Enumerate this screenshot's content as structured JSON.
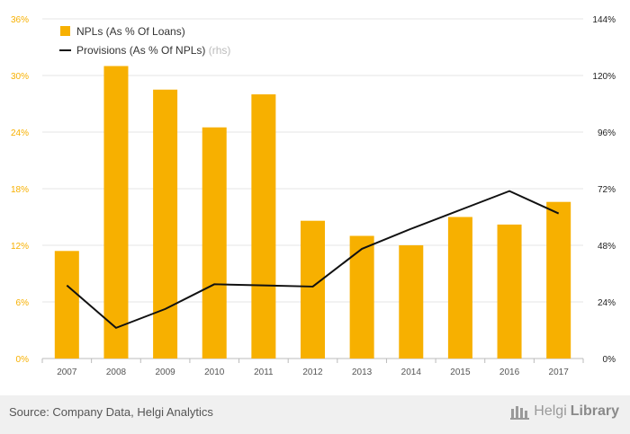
{
  "chart_data": {
    "type": "bar",
    "categories": [
      "2007",
      "2008",
      "2009",
      "2010",
      "2011",
      "2012",
      "2013",
      "2014",
      "2015",
      "2016",
      "2017"
    ],
    "series": [
      {
        "name": "NPLs (As % Of Loans)",
        "type": "bar",
        "axis": "left",
        "color": "#f7b000",
        "values": [
          11.4,
          31.0,
          28.5,
          24.5,
          28.0,
          14.6,
          13.0,
          12.0,
          15.0,
          14.2,
          16.6
        ]
      },
      {
        "name": "Provisions (As % Of NPLs)",
        "name_suffix": "(rhs)",
        "type": "line",
        "axis": "right",
        "color": "#111111",
        "values": [
          31,
          13,
          21,
          31.5,
          31,
          30.5,
          46.5,
          55,
          63,
          71,
          61.5
        ]
      }
    ],
    "y_left": {
      "ylim": [
        0,
        36
      ],
      "ticks": [
        "0%",
        "6%",
        "12%",
        "18%",
        "24%",
        "30%",
        "36%"
      ],
      "color": "#f7b000"
    },
    "y_right": {
      "ylim": [
        0,
        144
      ],
      "ticks": [
        "0%",
        "24%",
        "48%",
        "72%",
        "96%",
        "120%",
        "144%"
      ],
      "color": "#222222"
    },
    "grid": true,
    "legend": "top-left"
  },
  "footer": {
    "source": "Source: Company Data, Helgi Analytics",
    "brand_light": "Helgi",
    "brand_bold": "Library"
  }
}
